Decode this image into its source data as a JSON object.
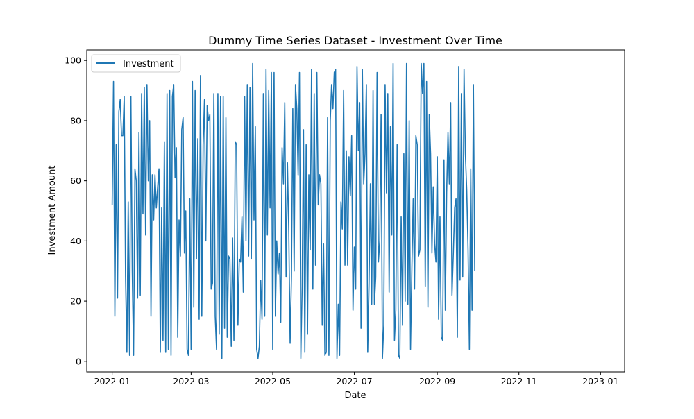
{
  "chart_data": {
    "type": "line",
    "title": "Dummy Time Series Dataset - Investment Over Time",
    "xlabel": "Date",
    "ylabel": "Investment Amount",
    "x_range": [
      "2021-12-13",
      "2023-01-19"
    ],
    "ylim": [
      -3.5,
      103.5
    ],
    "grid": false,
    "legend_position": "top-left",
    "x_ticks": [
      {
        "date": "2022-01-01",
        "label": "2022-01"
      },
      {
        "date": "2022-03-01",
        "label": "2022-03"
      },
      {
        "date": "2022-05-01",
        "label": "2022-05"
      },
      {
        "date": "2022-07-01",
        "label": "2022-07"
      },
      {
        "date": "2022-09-01",
        "label": "2022-09"
      },
      {
        "date": "2022-11-01",
        "label": "2022-11"
      },
      {
        "date": "2023-01-01",
        "label": "2023-01"
      }
    ],
    "y_ticks": [
      0,
      20,
      40,
      60,
      80,
      100
    ],
    "start_date": "2022-01-01",
    "series": [
      {
        "name": "Investment",
        "color": "#1f77b4",
        "frequency": "daily",
        "values": [
          52,
          93,
          15,
          72,
          21,
          83,
          87,
          75,
          75,
          88,
          28,
          3,
          53,
          2,
          88,
          30,
          2,
          64,
          60,
          21,
          76,
          22,
          89,
          49,
          91,
          42,
          92,
          60,
          80,
          15,
          62,
          47,
          62,
          51,
          58,
          64,
          3,
          51,
          7,
          73,
          3,
          89,
          4,
          90,
          2,
          88,
          92,
          61,
          71,
          8,
          47,
          35,
          77,
          81,
          36,
          50,
          4,
          2,
          54,
          4,
          93,
          18,
          90,
          34,
          74,
          14,
          95,
          15,
          72,
          87,
          40,
          85,
          80,
          82,
          24,
          26,
          89,
          15,
          4,
          89,
          9,
          88,
          1,
          88,
          11,
          81,
          8,
          35,
          34,
          5,
          41,
          7,
          73,
          72,
          12,
          34,
          33,
          48,
          23,
          88,
          40,
          92,
          35,
          91,
          34,
          99,
          47,
          78,
          4,
          1,
          5,
          27,
          14,
          89,
          15,
          97,
          42,
          90,
          51,
          96,
          4,
          96,
          15,
          40,
          29,
          36,
          13,
          71,
          59,
          86,
          28,
          66,
          43,
          6,
          28,
          84,
          30,
          92,
          84,
          62,
          96,
          1,
          25,
          77,
          3,
          72,
          9,
          62,
          37,
          97,
          24,
          89,
          32,
          96,
          52,
          62,
          59,
          12,
          39,
          2,
          3,
          81,
          2,
          80,
          92,
          84,
          96,
          97,
          1,
          19,
          2,
          53,
          44,
          90,
          32,
          70,
          32,
          68,
          55,
          75,
          17,
          38,
          24,
          98,
          70,
          86,
          11,
          97,
          59,
          69,
          92,
          3,
          26,
          59,
          19,
          90,
          19,
          28,
          96,
          33,
          40,
          82,
          1,
          12,
          92,
          56,
          89,
          23,
          78,
          42,
          99,
          7,
          17,
          72,
          2,
          1,
          48,
          12,
          69,
          20,
          99,
          19,
          80,
          4,
          31,
          54,
          24,
          75,
          72,
          35,
          37,
          99,
          89,
          99,
          25,
          93,
          18,
          82,
          69,
          36,
          58,
          39,
          33,
          68,
          14,
          48,
          8,
          7,
          67,
          17,
          56,
          76,
          59,
          86,
          22,
          36,
          51,
          54,
          8,
          98,
          27,
          89,
          28,
          97,
          69,
          57,
          37,
          4,
          64,
          17,
          92,
          30
        ]
      }
    ]
  }
}
